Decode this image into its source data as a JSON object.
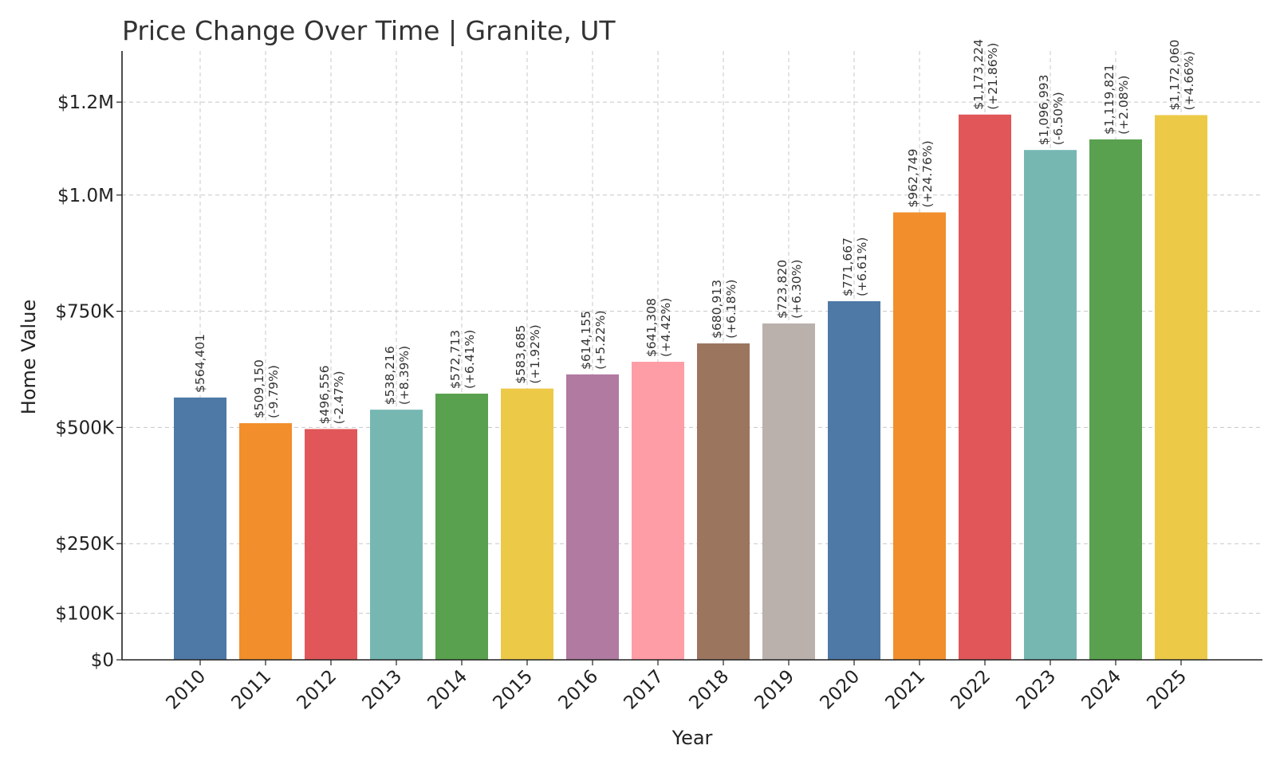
{
  "chart_data": {
    "type": "bar",
    "title": "Price Change Over Time | Granite, UT",
    "xlabel": "Year",
    "ylabel": "Home Value",
    "categories": [
      "2010",
      "2011",
      "2012",
      "2013",
      "2014",
      "2015",
      "2016",
      "2017",
      "2018",
      "2019",
      "2020",
      "2021",
      "2022",
      "2023",
      "2024",
      "2025"
    ],
    "values": [
      564401,
      509150,
      496556,
      538216,
      572713,
      583685,
      614155,
      641308,
      680913,
      723820,
      771667,
      962749,
      1173224,
      1096993,
      1119821,
      1172060
    ],
    "value_labels": [
      "$564,401",
      "$509,150",
      "$496,556",
      "$538,216",
      "$572,713",
      "$583,685",
      "$614,155",
      "$641,308",
      "$680,913",
      "$723,820",
      "$771,667",
      "$962,749",
      "$1,173,224",
      "$1,096,993",
      "$1,119,821",
      "$1,172,060"
    ],
    "change_labels": [
      "",
      "(-9.79%)",
      "(-2.47%)",
      "(+8.39%)",
      "(+6.41%)",
      "(+1.92%)",
      "(+5.22%)",
      "(+4.42%)",
      "(+6.18%)",
      "(+6.30%)",
      "(+6.61%)",
      "(+24.76%)",
      "(+21.86%)",
      "(-6.50%)",
      "(+2.08%)",
      "(+4.66%)"
    ],
    "colors": [
      "#4e79a7",
      "#f28e2b",
      "#e15759",
      "#76b7b2",
      "#59a14f",
      "#edc948",
      "#b07aa1",
      "#ff9da7",
      "#9c755f",
      "#bab0ac",
      "#4e79a7",
      "#f28e2b",
      "#e15759",
      "#76b7b2",
      "#59a14f",
      "#edc948"
    ],
    "yticks": [
      0,
      100000,
      250000,
      500000,
      750000,
      1000000,
      1200000
    ],
    "ytick_labels": [
      "$0",
      "$100K",
      "$250K",
      "$500K",
      "$750K",
      "$1.0M",
      "$1.2M"
    ],
    "ylim": [
      0,
      1310000
    ],
    "grid": true,
    "legend": "none"
  }
}
